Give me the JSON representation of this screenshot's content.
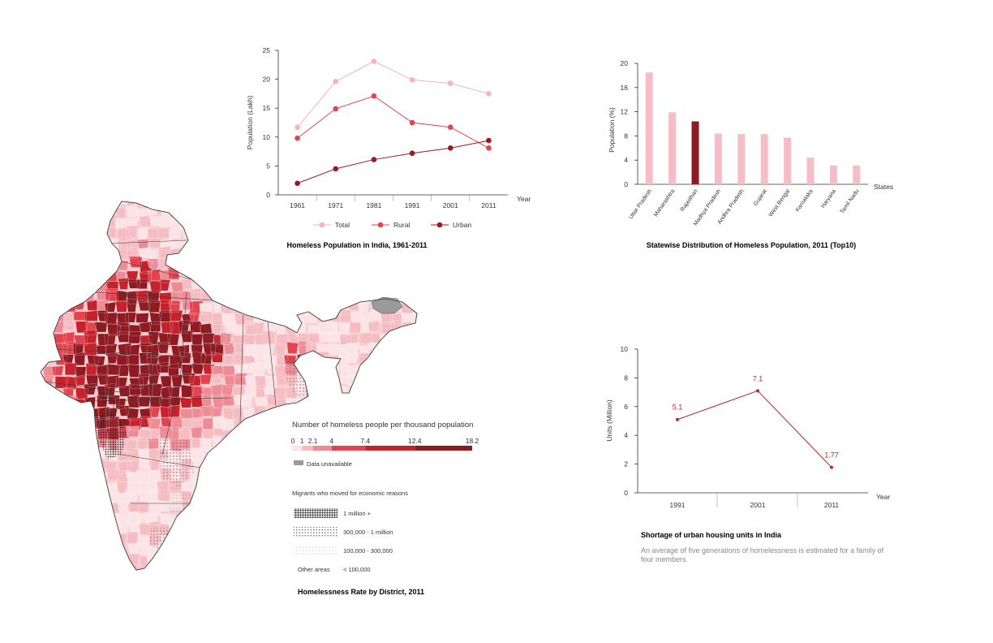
{
  "colors": {
    "total": "#f5b3bb",
    "rural": "#e3434f",
    "urban": "#9b1b22",
    "bar": "#f5bec5",
    "bar_highlight": "#8e1a22",
    "shortage_line": "#b4272d",
    "unavailable": "#9a9a9a"
  },
  "chart_data": [
    {
      "type": "line",
      "title": "Homeless Population in India, 1961-2011",
      "xlabel": "Year",
      "ylabel": "Population (Lakh)",
      "x": [
        "1961",
        "1971",
        "1981",
        "1991",
        "2001",
        "2011"
      ],
      "ylim": [
        0,
        25
      ],
      "yticks": [
        0,
        5,
        10,
        15,
        20,
        25
      ],
      "legend": "bottom",
      "series": [
        {
          "name": "Total",
          "color": "#f5b3bb",
          "values": [
            11.7,
            19.6,
            23.1,
            19.9,
            19.3,
            17.5
          ]
        },
        {
          "name": "Rural",
          "color": "#e3434f",
          "values": [
            9.8,
            14.9,
            17.1,
            12.5,
            11.7,
            8.1
          ]
        },
        {
          "name": "Urban",
          "color": "#9b1b22",
          "values": [
            2.0,
            4.5,
            6.1,
            7.2,
            8.1,
            9.4
          ]
        }
      ]
    },
    {
      "type": "bar",
      "title": "Statewise Distribution of Homeless Population, 2011 (Top10)",
      "xlabel": "States",
      "ylabel": "Population (%)",
      "ylim": [
        0,
        20
      ],
      "yticks": [
        0,
        4,
        8,
        12,
        16,
        20
      ],
      "categories": [
        "Uttar Pradesh",
        "Maharashtra",
        "Rajasthan",
        "Madhya Pradesh",
        "Andhra Pradesh",
        "Gujarat",
        "West Bengal",
        "Karnataka",
        "Haryana",
        "Tamil Nadu"
      ],
      "values": [
        18.5,
        11.9,
        10.4,
        8.4,
        8.3,
        8.3,
        7.7,
        4.4,
        3.1,
        3.1
      ],
      "highlight": "Rajasthan"
    },
    {
      "type": "line",
      "title": "Shortage of urban housing units in India",
      "subtitle": "An average of five generations of homelessness is estimated for a family of four members.",
      "xlabel": "Year",
      "ylabel": "Units (Million)",
      "ylim": [
        0,
        10
      ],
      "yticks": [
        0,
        2,
        4,
        6,
        8,
        10
      ],
      "x": [
        "1991",
        "2001",
        "2011"
      ],
      "series": [
        {
          "values": [
            5.1,
            7.1,
            1.77
          ],
          "labels": [
            "5.1",
            "7.1",
            "1.77"
          ]
        }
      ]
    }
  ],
  "map": {
    "title": "Homelessness Rate by District, 2011",
    "legend_title": "Number of homeless people per thousand population",
    "scale_ticks": [
      "0",
      "1",
      "2.1",
      "4",
      "7.4",
      "12.4",
      "18.2"
    ],
    "scale_values": [
      0,
      1,
      2.1,
      4,
      7.4,
      12.4,
      18.2
    ],
    "scale_colors": [
      "#fbe3e6",
      "#f5bcc2",
      "#ee8c96",
      "#e3434f",
      "#c6222c",
      "#8e1a22"
    ],
    "unavailable_label": "Data unavailable",
    "migrants_title": "Migrants who moved for economic reasons",
    "migrants": [
      {
        "label": "1 million +",
        "pattern": "dense"
      },
      {
        "label": "300,000 - 1 million",
        "pattern": "medium"
      },
      {
        "label": "100,000 - 300,000",
        "pattern": "sparse"
      },
      {
        "label": "< 100,000",
        "pattern": "none",
        "prefix": "Other areas"
      }
    ]
  }
}
